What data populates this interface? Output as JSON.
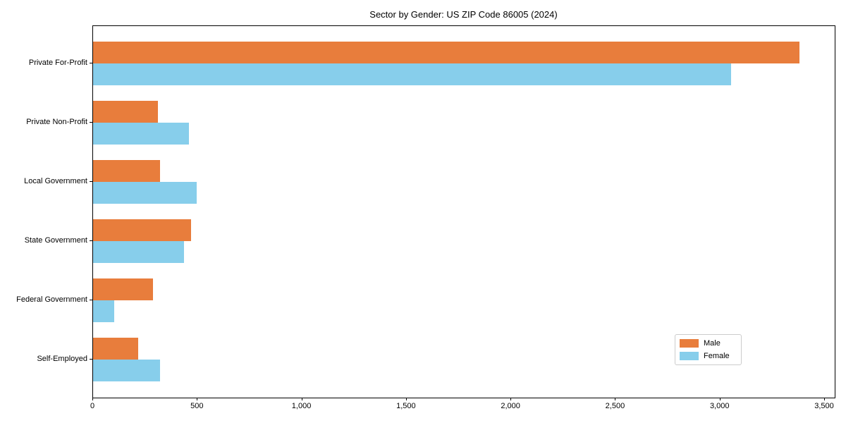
{
  "title": "Sector by Gender: US ZIP Code 86005 (2024)",
  "colors": {
    "male": "#e87d3c",
    "female": "#87ceeb",
    "axis": "#000000",
    "legend_border": "#cccccc",
    "background": "#ffffff"
  },
  "legend": {
    "items": [
      {
        "label": "Male",
        "color": "#e87d3c"
      },
      {
        "label": "Female",
        "color": "#87ceeb"
      }
    ],
    "position": "lower right"
  },
  "chart_data": {
    "type": "bar",
    "orientation": "horizontal",
    "title": "Sector by Gender: US ZIP Code 86005 (2024)",
    "categories": [
      "Private For-Profit",
      "Private Non-Profit",
      "Local Government",
      "State Government",
      "Federal Government",
      "Self-Employed"
    ],
    "series": [
      {
        "name": "Male",
        "color": "#e87d3c",
        "values": [
          3380,
          310,
          320,
          470,
          285,
          215
        ]
      },
      {
        "name": "Female",
        "color": "#87ceeb",
        "values": [
          3050,
          460,
          495,
          435,
          100,
          320
        ]
      }
    ],
    "xlabel": "",
    "ylabel": "",
    "xlim": [
      0,
      3500
    ],
    "xticks": [
      0,
      500,
      1000,
      1500,
      2000,
      2500,
      3000,
      3500
    ],
    "xtick_labels": [
      "0",
      "500",
      "1,000",
      "1,500",
      "2,000",
      "2,500",
      "3,000",
      "3,500"
    ],
    "grid": false,
    "legend_position": "lower right"
  }
}
